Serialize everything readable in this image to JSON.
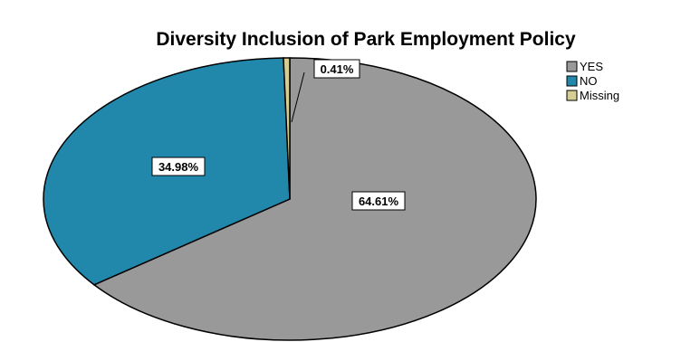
{
  "chart_data": {
    "type": "pie",
    "title": "Diversity Inclusion of Park Employment Policy",
    "categories": [
      "YES",
      "NO",
      "Missing"
    ],
    "values": [
      64.61,
      34.98,
      0.41
    ],
    "labels": [
      "64.61%",
      "34.98%",
      "0.41%"
    ],
    "colors": [
      "#999999",
      "#2188ab",
      "#d6cd93"
    ],
    "legend_position": "top-right"
  }
}
